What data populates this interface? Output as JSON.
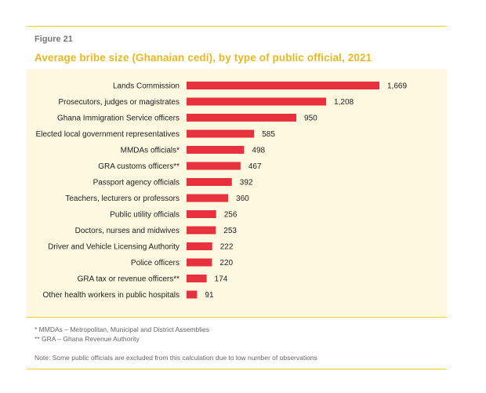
{
  "figure": {
    "label": "Figure 21",
    "title": "Average bribe size (Ghanaian cedi), by type of public official, 2021"
  },
  "colors": {
    "bar": "#e8313e",
    "title": "#e8b81f",
    "panel": "#fdf8df",
    "rule": "#f2d21b"
  },
  "chart_data": {
    "type": "bar",
    "orientation": "horizontal",
    "categories": [
      "Lands Commission",
      "Prosecutors, judges or magistrates",
      "Ghana Immigration Service officers",
      "Elected local government representatives",
      "MMDAs officials*",
      "GRA customs officers**",
      "Passport agency officials",
      "Teachers, lecturers or professors",
      "Public utility officials",
      "Doctors, nurses and midwives",
      "Driver and Vehicle Licensing Authority",
      "Police officers",
      "GRA tax or revenue officers**",
      "Other health workers in public hospitals"
    ],
    "values": [
      1669,
      1208,
      950,
      585,
      498,
      467,
      392,
      360,
      256,
      253,
      222,
      220,
      174,
      91
    ],
    "value_labels": [
      "1,669",
      "1,208",
      "950",
      "585",
      "498",
      "467",
      "392",
      "360",
      "256",
      "253",
      "222",
      "220",
      "174",
      "91"
    ],
    "xlim": [
      0,
      1669
    ],
    "grid": false,
    "legend": "none"
  },
  "notes": {
    "note1": "* MMDAs – Metropolitan, Municipal and District Assemblies",
    "note2": "** GRA – Ghana Revenue Authority",
    "note3": "Note: Some public officials are excluded from this calculation due to low number of observations"
  }
}
